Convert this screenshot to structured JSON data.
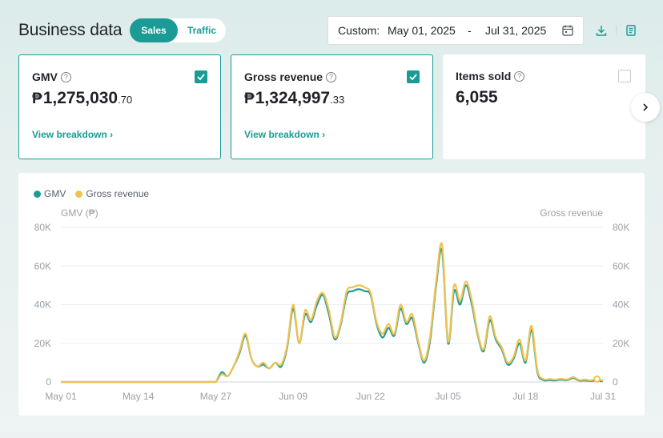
{
  "header": {
    "title": "Business data",
    "tabs": [
      {
        "label": "Sales",
        "active": true
      },
      {
        "label": "Traffic",
        "active": false
      }
    ],
    "date_range": {
      "label": "Custom:",
      "start": "May 01, 2025",
      "separator": "-",
      "end": "Jul 31, 2025"
    },
    "icons": [
      "calendar-icon",
      "download-icon",
      "report-icon"
    ]
  },
  "metrics": [
    {
      "title": "GMV",
      "currency": "₱",
      "int": "1,275,030",
      "dec": ".70",
      "link": "View breakdown",
      "checked": true
    },
    {
      "title": "Gross revenue",
      "currency": "₱",
      "int": "1,324,997",
      "dec": ".33",
      "link": "View breakdown",
      "checked": true
    },
    {
      "title": "Items sold",
      "currency": "",
      "int": "6,055",
      "dec": "",
      "link": "",
      "checked": false
    }
  ],
  "colors": {
    "accent": "#1a9b95",
    "gmv": "#1a9b95",
    "gross": "#f2c14e"
  },
  "chart_data": {
    "type": "line",
    "y_left_label": "GMV (₱)",
    "y_right_label": "Gross revenue",
    "ylim": [
      0,
      80000
    ],
    "yticks": [
      0,
      20000,
      40000,
      60000,
      80000
    ],
    "ytick_labels": [
      "0",
      "20K",
      "40K",
      "60K",
      "80K"
    ],
    "xtick_labels": [
      "May 01",
      "May 14",
      "May 27",
      "Jun 09",
      "Jun 22",
      "Jul 05",
      "Jul 18",
      "Jul 31"
    ],
    "xtick_days": [
      0,
      13,
      26,
      39,
      52,
      65,
      78,
      91
    ],
    "grid": true,
    "legend_position": "top-left",
    "series": [
      {
        "name": "GMV",
        "color": "#1a9b95",
        "values": [
          0,
          0,
          0,
          0,
          0,
          0,
          0,
          0,
          0,
          0,
          0,
          0,
          0,
          0,
          0,
          0,
          0,
          0,
          0,
          0,
          0,
          0,
          0,
          0,
          0,
          0,
          0,
          5000,
          3000,
          8000,
          15000,
          24000,
          12000,
          8000,
          9000,
          7000,
          10000,
          8000,
          18000,
          38000,
          20000,
          35000,
          31000,
          40000,
          45000,
          35000,
          22000,
          30000,
          45000,
          47000,
          48000,
          47000,
          45000,
          30000,
          23000,
          28000,
          24000,
          38000,
          30000,
          33000,
          20000,
          10000,
          22000,
          50000,
          68000,
          20000,
          47000,
          40000,
          50000,
          40000,
          24000,
          16000,
          32000,
          22000,
          17000,
          9000,
          12000,
          20000,
          10000,
          27000,
          5000,
          1000,
          1000,
          800,
          1200,
          900,
          2000,
          700,
          800,
          500,
          800,
          300
        ]
      },
      {
        "name": "Gross revenue",
        "color": "#f2c14e",
        "values": [
          0,
          0,
          0,
          0,
          0,
          0,
          0,
          0,
          0,
          0,
          0,
          0,
          0,
          0,
          0,
          0,
          0,
          0,
          0,
          0,
          0,
          0,
          0,
          0,
          0,
          0,
          0,
          4000,
          3000,
          8000,
          16000,
          25000,
          12000,
          8000,
          10000,
          7000,
          10000,
          9000,
          19000,
          40000,
          20000,
          37000,
          32000,
          42000,
          46000,
          37000,
          23000,
          31000,
          47000,
          49000,
          50000,
          49000,
          46000,
          31000,
          25000,
          30000,
          25000,
          40000,
          31000,
          35000,
          21000,
          11000,
          24000,
          52000,
          71000,
          21000,
          50000,
          42000,
          52000,
          42000,
          25000,
          17000,
          34000,
          23000,
          18000,
          10000,
          13000,
          22000,
          11000,
          29000,
          6000,
          1500,
          1500,
          1200,
          1600,
          1200,
          2500,
          1000,
          1200,
          800,
          1500,
          600
        ]
      }
    ]
  }
}
